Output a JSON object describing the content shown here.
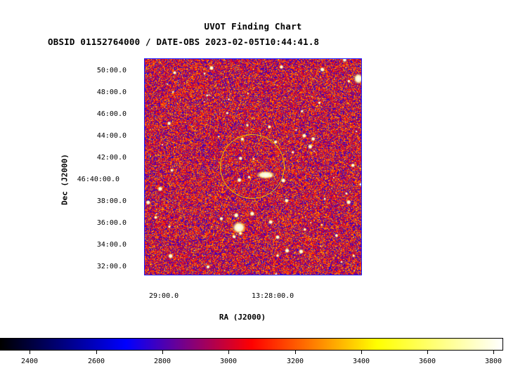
{
  "title": "UVOT Finding Chart",
  "subtitle": "OBSID 01152764000 / DATE-OBS 2023-02-05T10:44:41.8",
  "axes": {
    "x_label": "RA (J2000)",
    "y_label": "Dec (J2000)",
    "x_ticks": [
      "29:00.0",
      "13:28:00.0"
    ],
    "y_ticks": [
      "50:00.0",
      "48:00.0",
      "46:00.0",
      "44:00.0",
      "42:00.0",
      "46:40:00.0",
      "38:00.0",
      "36:00.0",
      "34:00.0",
      "32:00.0"
    ]
  },
  "colorbar": {
    "ticks": [
      "2400",
      "2600",
      "2800",
      "3000",
      "3200",
      "3400",
      "3600",
      "3800"
    ],
    "colormap": [
      "#000000",
      "#0000ff",
      "#ff0000",
      "#ffff00",
      "#ffffff"
    ]
  },
  "overlay": {
    "circle_color": "#e6c200"
  }
}
